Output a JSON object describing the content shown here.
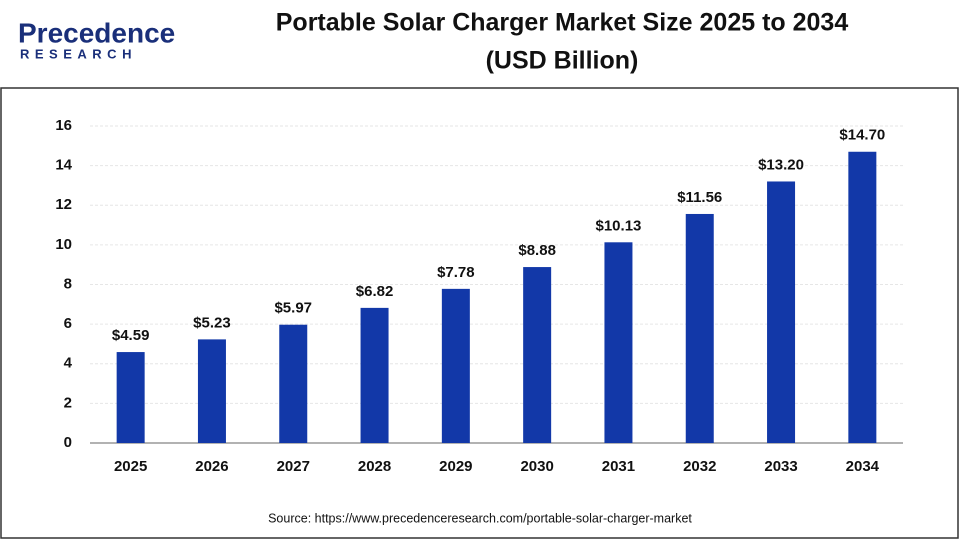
{
  "logo": {
    "name": "Precedence",
    "tagline": "RESEARCH"
  },
  "chart_data": {
    "type": "bar",
    "title": "Portable Solar Charger Market Size 2025 to 2034",
    "subtitle": "(USD Billion)",
    "categories": [
      "2025",
      "2026",
      "2027",
      "2028",
      "2029",
      "2030",
      "2031",
      "2032",
      "2033",
      "2034"
    ],
    "values": [
      4.59,
      5.23,
      5.97,
      6.82,
      7.78,
      8.88,
      10.13,
      11.56,
      13.2,
      14.7
    ],
    "value_labels": [
      "$4.59",
      "$5.23",
      "$5.97",
      "$6.82",
      "$7.78",
      "$8.88",
      "$10.13",
      "$11.56",
      "$13.20",
      "$14.70"
    ],
    "color": "#1238a8",
    "ylim": [
      0,
      16
    ],
    "yticks": [
      0,
      2,
      4,
      6,
      8,
      10,
      12,
      14,
      16
    ],
    "grid": true,
    "source": "Source: https://www.precedenceresearch.com/portable-solar-charger-market"
  }
}
